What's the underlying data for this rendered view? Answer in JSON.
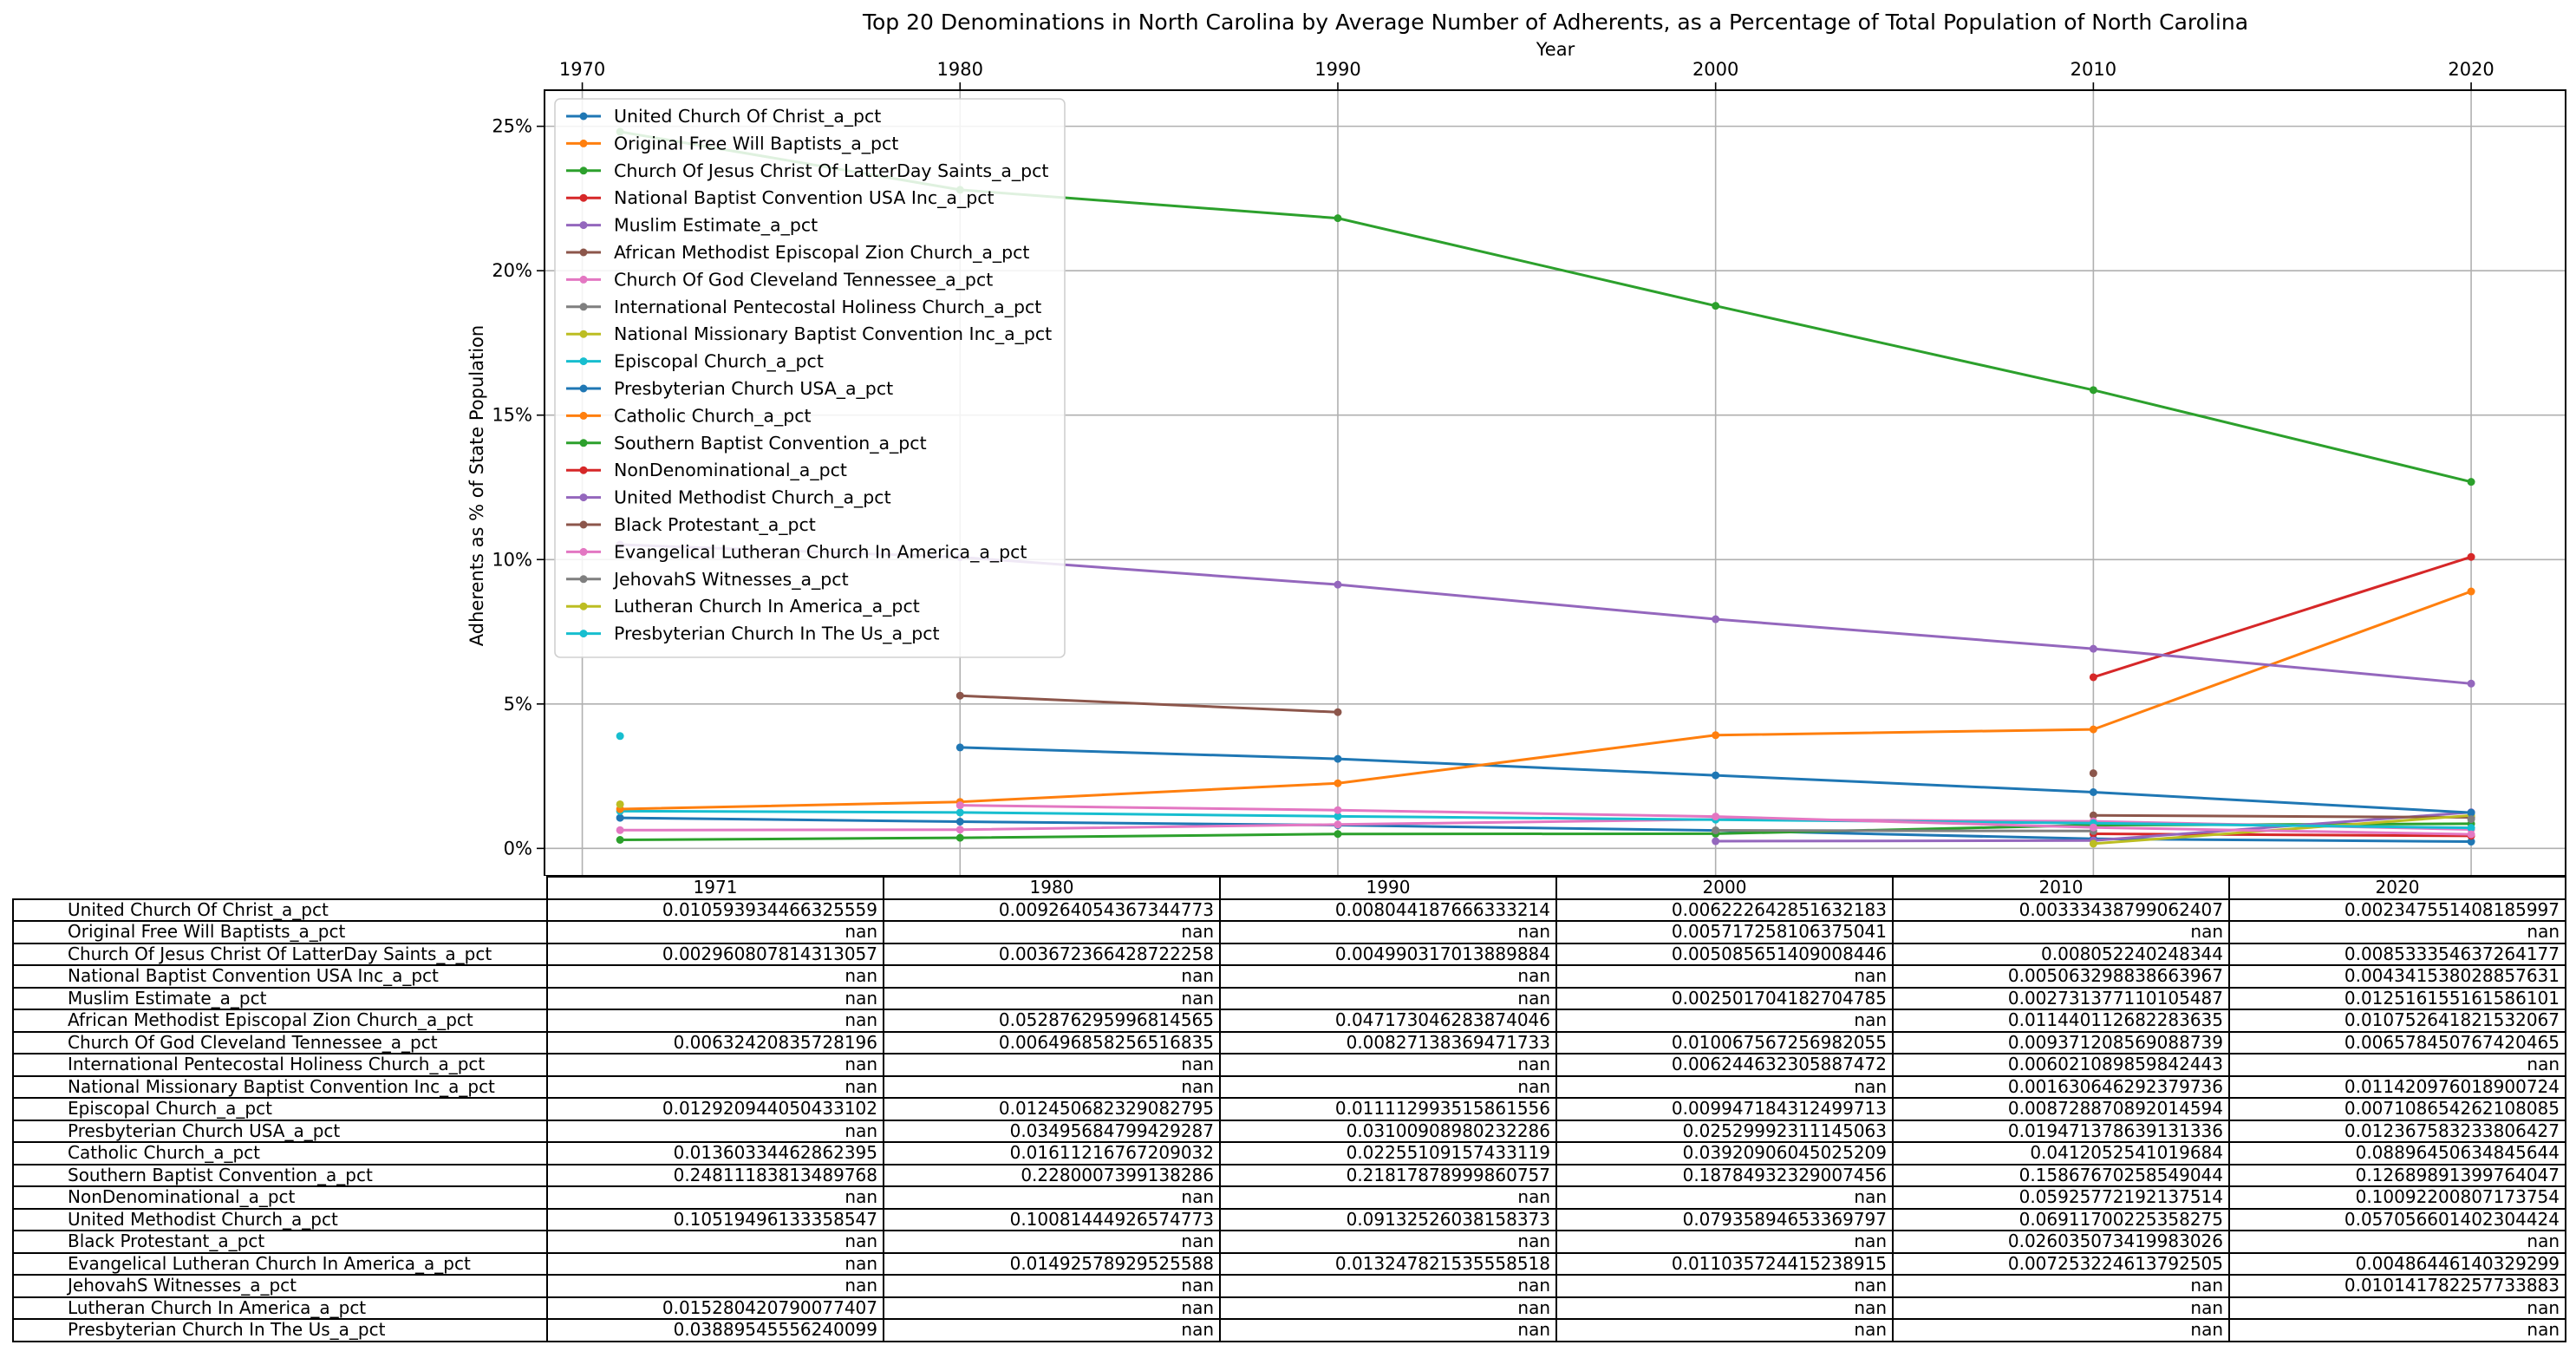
{
  "chart_data": {
    "type": "line",
    "title": "Top 20 Denominations in North Carolina by Average Number of Adherents, as a Percentage of Total Population of North Carolina",
    "xlabel": "Year",
    "ylabel": "Adherents as % of State Population",
    "xlim": [
      1969,
      2022.5
    ],
    "ylim": [
      -0.0095,
      0.2625
    ],
    "x_ticks": [
      1970,
      1980,
      1990,
      2000,
      2010,
      2020
    ],
    "x_tick_labels": [
      "1970",
      "1980",
      "1990",
      "2000",
      "2010",
      "2020"
    ],
    "y_ticks": [
      0,
      0.05,
      0.1,
      0.15,
      0.2,
      0.25
    ],
    "y_tick_labels": [
      "0%",
      "5%",
      "10%",
      "15%",
      "20%",
      "25%"
    ],
    "grid": true,
    "legend_position": "top-left",
    "x": [
      1971,
      1980,
      1990,
      2000,
      2010,
      2020
    ],
    "series": [
      {
        "name": "United Church Of Christ_a_pct",
        "color": "#1f77b4",
        "values": [
          0.010593934466325559,
          0.009264054367344773,
          0.008044187666333214,
          0.006222642851632183,
          0.00333438799062407,
          0.002347551408185997
        ]
      },
      {
        "name": "Original Free Will Baptists_a_pct",
        "color": "#ff7f0e",
        "values": [
          null,
          null,
          null,
          0.005717258106375041,
          null,
          null
        ]
      },
      {
        "name": "Church Of Jesus Christ Of LatterDay Saints_a_pct",
        "color": "#2ca02c",
        "values": [
          0.002960807814313057,
          0.003672366428722258,
          0.004990317013889884,
          0.005085651409008446,
          0.008052240248344,
          0.008533354637264177
        ]
      },
      {
        "name": "National Baptist Convention USA Inc_a_pct",
        "color": "#d62728",
        "values": [
          null,
          null,
          null,
          null,
          0.005063298838663967,
          0.004341538028857631
        ]
      },
      {
        "name": "Muslim Estimate_a_pct",
        "color": "#9467bd",
        "values": [
          null,
          null,
          null,
          0.002501704182704785,
          0.002731377110105487,
          0.012516155161586101
        ]
      },
      {
        "name": "African Methodist Episcopal Zion Church_a_pct",
        "color": "#8c564b",
        "values": [
          null,
          0.052876295996814565,
          0.047173046283874046,
          null,
          0.011440112682283635,
          0.010752641821532067
        ]
      },
      {
        "name": "Church Of God Cleveland Tennessee_a_pct",
        "color": "#e377c2",
        "values": [
          0.00632420835728196,
          0.006496858256516835,
          0.00827138369471733,
          0.010067567256982055,
          0.009371208569088739,
          0.006578450767420465
        ]
      },
      {
        "name": "International Pentecostal Holiness Church_a_pct",
        "color": "#7f7f7f",
        "values": [
          null,
          null,
          null,
          0.006244632305887472,
          0.006021089859842443,
          null
        ]
      },
      {
        "name": "National Missionary Baptist Convention Inc_a_pct",
        "color": "#bcbd22",
        "values": [
          null,
          null,
          null,
          null,
          0.001630646292379736,
          0.011420976018900724
        ]
      },
      {
        "name": "Episcopal Church_a_pct",
        "color": "#17becf",
        "values": [
          0.012920944050433102,
          0.012450682329082795,
          0.011112993515861556,
          0.009947184312499713,
          0.008728870892014594,
          0.007108654262108085
        ]
      },
      {
        "name": "Presbyterian Church USA_a_pct",
        "color": "#1f77b4",
        "values": [
          null,
          0.03495684799429287,
          0.03100908980232286,
          0.02529992311145063,
          0.019471378639131336,
          0.012367583233806427
        ]
      },
      {
        "name": "Catholic Church_a_pct",
        "color": "#ff7f0e",
        "values": [
          0.01360334462862395,
          0.01611216767209032,
          0.02255109157433119,
          0.03920906045025209,
          0.0412052541019684,
          0.08896450634845644
        ]
      },
      {
        "name": "Southern Baptist Convention_a_pct",
        "color": "#2ca02c",
        "values": [
          0.24811183813489768,
          0.2280007399138286,
          0.21817878999860757,
          0.18784932329007456,
          0.15867670258549044,
          0.12689891399764047
        ]
      },
      {
        "name": "NonDenominational_a_pct",
        "color": "#d62728",
        "values": [
          null,
          null,
          null,
          null,
          0.05925772192137514,
          0.10092200807173754
        ]
      },
      {
        "name": "United Methodist Church_a_pct",
        "color": "#9467bd",
        "values": [
          0.10519496133358547,
          0.10081444926574773,
          0.09132526038158373,
          0.07935894653369797,
          0.06911700225358275,
          0.057056601402304424
        ]
      },
      {
        "name": "Black Protestant_a_pct",
        "color": "#8c564b",
        "values": [
          null,
          null,
          null,
          null,
          0.026035073419983026,
          null
        ]
      },
      {
        "name": "Evangelical Lutheran Church In America_a_pct",
        "color": "#e377c2",
        "values": [
          null,
          0.01492578929525588,
          0.013247821535558518,
          0.011035724415238915,
          0.007253224613792505,
          0.00486446140329299
        ]
      },
      {
        "name": "JehovahS Witnesses_a_pct",
        "color": "#7f7f7f",
        "values": [
          null,
          null,
          null,
          null,
          null,
          0.010141782257733883
        ]
      },
      {
        "name": "Lutheran Church In America_a_pct",
        "color": "#bcbd22",
        "values": [
          0.015280420790077407,
          null,
          null,
          null,
          null,
          null
        ]
      },
      {
        "name": "Presbyterian Church In The Us_a_pct",
        "color": "#17becf",
        "values": [
          0.03889545556240099,
          null,
          null,
          null,
          null,
          null
        ]
      }
    ],
    "table": {
      "columns": [
        "1971",
        "1980",
        "1990",
        "2000",
        "2010",
        "2020"
      ],
      "rows": [
        {
          "label": "United Church Of Christ_a_pct",
          "cells": [
            "0.010593934466325559",
            "0.009264054367344773",
            "0.008044187666333214",
            "0.006222642851632183",
            "0.00333438799062407",
            "0.002347551408185997"
          ]
        },
        {
          "label": "Original Free Will Baptists_a_pct",
          "cells": [
            "nan",
            "nan",
            "nan",
            "0.005717258106375041",
            "nan",
            "nan"
          ]
        },
        {
          "label": "Church Of Jesus Christ Of LatterDay Saints_a_pct",
          "cells": [
            "0.002960807814313057",
            "0.003672366428722258",
            "0.004990317013889884",
            "0.005085651409008446",
            "0.008052240248344",
            "0.008533354637264177"
          ]
        },
        {
          "label": "National Baptist Convention USA Inc_a_pct",
          "cells": [
            "nan",
            "nan",
            "nan",
            "nan",
            "0.005063298838663967",
            "0.004341538028857631"
          ]
        },
        {
          "label": "Muslim Estimate_a_pct",
          "cells": [
            "nan",
            "nan",
            "nan",
            "0.002501704182704785",
            "0.002731377110105487",
            "0.012516155161586101"
          ]
        },
        {
          "label": "African Methodist Episcopal Zion Church_a_pct",
          "cells": [
            "nan",
            "0.052876295996814565",
            "0.047173046283874046",
            "nan",
            "0.011440112682283635",
            "0.010752641821532067"
          ]
        },
        {
          "label": "Church Of God Cleveland Tennessee_a_pct",
          "cells": [
            "0.00632420835728196",
            "0.006496858256516835",
            "0.00827138369471733",
            "0.010067567256982055",
            "0.009371208569088739",
            "0.006578450767420465"
          ]
        },
        {
          "label": "International Pentecostal Holiness Church_a_pct",
          "cells": [
            "nan",
            "nan",
            "nan",
            "0.006244632305887472",
            "0.006021089859842443",
            "nan"
          ]
        },
        {
          "label": "National Missionary Baptist Convention Inc_a_pct",
          "cells": [
            "nan",
            "nan",
            "nan",
            "nan",
            "0.001630646292379736",
            "0.011420976018900724"
          ]
        },
        {
          "label": "Episcopal Church_a_pct",
          "cells": [
            "0.012920944050433102",
            "0.012450682329082795",
            "0.011112993515861556",
            "0.009947184312499713",
            "0.008728870892014594",
            "0.007108654262108085"
          ]
        },
        {
          "label": "Presbyterian Church USA_a_pct",
          "cells": [
            "nan",
            "0.03495684799429287",
            "0.03100908980232286",
            "0.02529992311145063",
            "0.019471378639131336",
            "0.012367583233806427"
          ]
        },
        {
          "label": "Catholic Church_a_pct",
          "cells": [
            "0.01360334462862395",
            "0.01611216767209032",
            "0.02255109157433119",
            "0.03920906045025209",
            "0.0412052541019684",
            "0.08896450634845644"
          ]
        },
        {
          "label": "Southern Baptist Convention_a_pct",
          "cells": [
            "0.24811183813489768",
            "0.2280007399138286",
            "0.21817878999860757",
            "0.18784932329007456",
            "0.15867670258549044",
            "0.12689891399764047"
          ]
        },
        {
          "label": "NonDenominational_a_pct",
          "cells": [
            "nan",
            "nan",
            "nan",
            "nan",
            "0.05925772192137514",
            "0.10092200807173754"
          ]
        },
        {
          "label": "United Methodist Church_a_pct",
          "cells": [
            "0.10519496133358547",
            "0.10081444926574773",
            "0.09132526038158373",
            "0.07935894653369797",
            "0.06911700225358275",
            "0.057056601402304424"
          ]
        },
        {
          "label": "Black Protestant_a_pct",
          "cells": [
            "nan",
            "nan",
            "nan",
            "nan",
            "0.026035073419983026",
            "nan"
          ]
        },
        {
          "label": "Evangelical Lutheran Church In America_a_pct",
          "cells": [
            "nan",
            "0.01492578929525588",
            "0.013247821535558518",
            "0.011035724415238915",
            "0.007253224613792505",
            "0.00486446140329299"
          ]
        },
        {
          "label": "JehovahS Witnesses_a_pct",
          "cells": [
            "nan",
            "nan",
            "nan",
            "nan",
            "nan",
            "0.010141782257733883"
          ]
        },
        {
          "label": "Lutheran Church In America_a_pct",
          "cells": [
            "0.015280420790077407",
            "nan",
            "nan",
            "nan",
            "nan",
            "nan"
          ]
        },
        {
          "label": "Presbyterian Church In The Us_a_pct",
          "cells": [
            "0.03889545556240099",
            "nan",
            "nan",
            "nan",
            "nan",
            "nan"
          ]
        }
      ]
    }
  }
}
